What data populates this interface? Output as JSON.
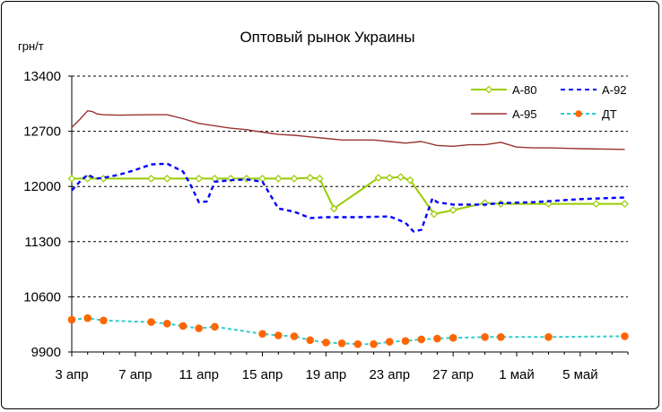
{
  "chart_data": {
    "type": "line",
    "title": "Оптовый рынок Украины",
    "ylabel": "грн/т",
    "xlabel": "",
    "ylim": [
      9900,
      13400
    ],
    "yticks": [
      9900,
      10600,
      11300,
      12000,
      12700,
      13400
    ],
    "xlim": [
      0,
      35
    ],
    "x_ticks": [
      {
        "x": 0,
        "label": "3 апр"
      },
      {
        "x": 4,
        "label": "7 апр"
      },
      {
        "x": 8,
        "label": "11 апр"
      },
      {
        "x": 12,
        "label": "15 апр"
      },
      {
        "x": 16,
        "label": "19 апр"
      },
      {
        "x": 20,
        "label": "23 апр"
      },
      {
        "x": 24,
        "label": "27 апр"
      },
      {
        "x": 28,
        "label": "1 май"
      },
      {
        "x": 32,
        "label": "5 май"
      }
    ],
    "grid": true,
    "legend": "top-right",
    "series": [
      {
        "name": "А-80",
        "color": "#99cc00",
        "style": "solid",
        "marker": "diamond",
        "points": [
          [
            0,
            12100
          ],
          [
            1,
            12100
          ],
          [
            2,
            12100
          ],
          [
            5,
            12100
          ],
          [
            6,
            12100
          ],
          [
            8,
            12100
          ],
          [
            9,
            12100
          ],
          [
            10,
            12100
          ],
          [
            11,
            12100
          ],
          [
            12,
            12100
          ],
          [
            13,
            12100
          ],
          [
            14,
            12100
          ],
          [
            15,
            12110
          ],
          [
            15.6,
            12100
          ],
          [
            16.5,
            11720
          ],
          [
            19.3,
            12110
          ],
          [
            20,
            12110
          ],
          [
            20.7,
            12120
          ],
          [
            21.3,
            12080
          ],
          [
            22.8,
            11650
          ],
          [
            24,
            11700
          ],
          [
            26,
            11790
          ],
          [
            27,
            11780
          ],
          [
            30,
            11780
          ],
          [
            33,
            11780
          ],
          [
            34.8,
            11780
          ]
        ]
      },
      {
        "name": "А-92",
        "color": "#0000ff",
        "style": "dashed",
        "marker": "none",
        "points": [
          [
            0,
            11950
          ],
          [
            0.5,
            12060
          ],
          [
            1,
            12150
          ],
          [
            1.5,
            12100
          ],
          [
            2,
            12110
          ],
          [
            3,
            12150
          ],
          [
            4,
            12210
          ],
          [
            5,
            12280
          ],
          [
            6,
            12290
          ],
          [
            7,
            12190
          ],
          [
            7.5,
            12010
          ],
          [
            8,
            11800
          ],
          [
            8.5,
            11810
          ],
          [
            9,
            12060
          ],
          [
            10,
            12080
          ],
          [
            11,
            12090
          ],
          [
            12,
            12060
          ],
          [
            13,
            11720
          ],
          [
            14,
            11680
          ],
          [
            15,
            11600
          ],
          [
            16,
            11610
          ],
          [
            18,
            11610
          ],
          [
            20,
            11620
          ],
          [
            21,
            11540
          ],
          [
            21.5,
            11430
          ],
          [
            22,
            11450
          ],
          [
            22.7,
            11850
          ],
          [
            23,
            11800
          ],
          [
            24,
            11770
          ],
          [
            26,
            11770
          ],
          [
            27,
            11790
          ],
          [
            29,
            11800
          ],
          [
            32,
            11840
          ],
          [
            34.8,
            11860
          ]
        ]
      },
      {
        "name": "А-95",
        "color": "#993333",
        "style": "solid",
        "marker": "none",
        "points": [
          [
            0,
            12750
          ],
          [
            0.5,
            12850
          ],
          [
            1,
            12960
          ],
          [
            1.3,
            12950
          ],
          [
            1.6,
            12920
          ],
          [
            2,
            12910
          ],
          [
            3,
            12905
          ],
          [
            5,
            12910
          ],
          [
            6,
            12910
          ],
          [
            7,
            12860
          ],
          [
            8,
            12800
          ],
          [
            9,
            12770
          ],
          [
            10,
            12740
          ],
          [
            11,
            12720
          ],
          [
            12,
            12690
          ],
          [
            13,
            12660
          ],
          [
            14,
            12650
          ],
          [
            15,
            12630
          ],
          [
            16,
            12610
          ],
          [
            17,
            12590
          ],
          [
            18,
            12590
          ],
          [
            19,
            12590
          ],
          [
            20,
            12570
          ],
          [
            21,
            12550
          ],
          [
            22,
            12570
          ],
          [
            23,
            12520
          ],
          [
            24,
            12510
          ],
          [
            25,
            12530
          ],
          [
            26,
            12530
          ],
          [
            27,
            12560
          ],
          [
            28,
            12500
          ],
          [
            29,
            12490
          ],
          [
            30,
            12490
          ],
          [
            32,
            12480
          ],
          [
            34.8,
            12470
          ]
        ]
      },
      {
        "name": "ДТ",
        "color": "#33cccc",
        "style": "dashed",
        "marker": "circle",
        "points": [
          [
            0,
            10310
          ],
          [
            1,
            10330
          ],
          [
            2,
            10300
          ],
          [
            5,
            10280
          ],
          [
            6,
            10260
          ],
          [
            7,
            10230
          ],
          [
            8,
            10200
          ],
          [
            9,
            10220
          ],
          [
            12,
            10130
          ],
          [
            13,
            10110
          ],
          [
            14,
            10100
          ],
          [
            15,
            10050
          ],
          [
            16,
            10020
          ],
          [
            17,
            10010
          ],
          [
            18,
            10000
          ],
          [
            19,
            10000
          ],
          [
            20,
            10030
          ],
          [
            21,
            10040
          ],
          [
            22,
            10060
          ],
          [
            23,
            10070
          ],
          [
            24,
            10080
          ],
          [
            26,
            10090
          ],
          [
            27,
            10090
          ],
          [
            30,
            10090
          ],
          [
            34.8,
            10100
          ]
        ]
      }
    ]
  }
}
